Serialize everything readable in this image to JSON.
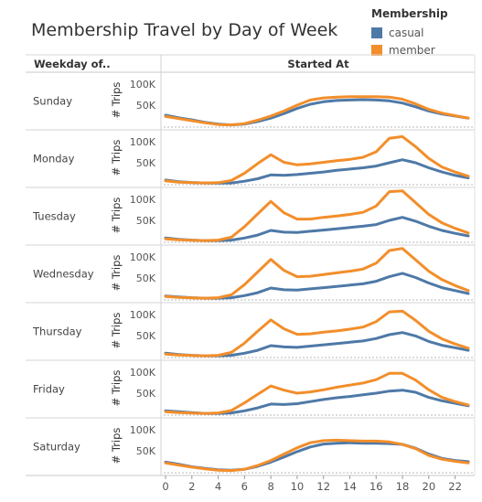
{
  "title": "Membership Travel by Day of Week",
  "legend": {
    "title": "Membership",
    "items": [
      {
        "label": "casual",
        "color": "#4e79a7"
      },
      {
        "label": "member",
        "color": "#f28e2b"
      }
    ]
  },
  "chart_data": {
    "type": "line",
    "title": "Membership Travel by Day of Week",
    "row_header": "Weekday of..",
    "column_header": "Started At",
    "ylabel": "# Trips",
    "x": [
      0,
      1,
      2,
      3,
      4,
      5,
      6,
      7,
      8,
      9,
      10,
      11,
      12,
      13,
      14,
      15,
      16,
      17,
      18,
      19,
      20,
      21,
      22,
      23
    ],
    "x_ticks": [
      0,
      2,
      4,
      6,
      8,
      10,
      12,
      14,
      16,
      18,
      20,
      22
    ],
    "ylim": [
      0,
      115000
    ],
    "y_ticks": [
      {
        "value": 50000,
        "label": "50K"
      },
      {
        "value": 100000,
        "label": "100K"
      }
    ],
    "panels": [
      {
        "day": "Sunday",
        "casual": [
          26000,
          20000,
          15000,
          9000,
          5000,
          3000,
          5000,
          11000,
          19000,
          30000,
          42000,
          52000,
          58000,
          61000,
          62000,
          63000,
          62000,
          60000,
          55000,
          46000,
          36000,
          29000,
          24000,
          19000
        ],
        "member": [
          23000,
          18000,
          13000,
          8000,
          4000,
          3000,
          6000,
          14000,
          24000,
          36000,
          50000,
          62000,
          67000,
          69000,
          70000,
          70000,
          70000,
          69000,
          64000,
          53000,
          40000,
          31000,
          25000,
          19000
        ]
      },
      {
        "day": "Monday",
        "casual": [
          9000,
          5000,
          3000,
          2000,
          1500,
          2000,
          6000,
          12000,
          21000,
          20000,
          22000,
          25000,
          28000,
          32000,
          35000,
          38000,
          42000,
          50000,
          57000,
          50000,
          38000,
          28000,
          20000,
          14000
        ],
        "member": [
          7000,
          4000,
          2500,
          2000,
          2500,
          8000,
          25000,
          48000,
          69000,
          51000,
          45000,
          47000,
          51000,
          55000,
          58000,
          63000,
          76000,
          108000,
          112000,
          88000,
          60000,
          40000,
          28000,
          18000
        ]
      },
      {
        "day": "Tuesday",
        "casual": [
          8000,
          5000,
          3000,
          2000,
          2000,
          3000,
          8000,
          15000,
          26000,
          22000,
          21000,
          24000,
          27000,
          30000,
          33000,
          36000,
          40000,
          50000,
          57000,
          48000,
          36000,
          26000,
          19000,
          13000
        ],
        "member": [
          6000,
          4000,
          2500,
          2000,
          3000,
          10000,
          35000,
          65000,
          95000,
          68000,
          53000,
          53000,
          57000,
          60000,
          64000,
          69000,
          84000,
          118000,
          120000,
          92000,
          64000,
          44000,
          31000,
          20000
        ]
      },
      {
        "day": "Wednesday",
        "casual": [
          7000,
          5000,
          3000,
          2000,
          2000,
          3000,
          8000,
          15000,
          26000,
          22000,
          21000,
          24000,
          27000,
          30000,
          33000,
          36000,
          42000,
          53000,
          61000,
          51000,
          38000,
          27000,
          20000,
          13000
        ],
        "member": [
          6000,
          4000,
          2500,
          2000,
          3000,
          10000,
          34000,
          64000,
          94000,
          68000,
          53000,
          54000,
          58000,
          62000,
          66000,
          71000,
          85000,
          115000,
          120000,
          93000,
          66000,
          46000,
          32000,
          20000
        ]
      },
      {
        "day": "Thursday",
        "casual": [
          8000,
          5000,
          3000,
          2000,
          2000,
          3000,
          8000,
          15000,
          26000,
          23000,
          22000,
          25000,
          28000,
          31000,
          34000,
          37000,
          43000,
          52000,
          57000,
          49000,
          36000,
          27000,
          21000,
          15000
        ],
        "member": [
          6000,
          4000,
          2500,
          2000,
          3000,
          10000,
          32000,
          60000,
          87000,
          66000,
          53000,
          54000,
          58000,
          61000,
          65000,
          70000,
          83000,
          106000,
          108000,
          86000,
          60000,
          42000,
          30000,
          20000
        ]
      },
      {
        "day": "Friday",
        "casual": [
          8000,
          6000,
          4000,
          2000,
          2000,
          3000,
          8000,
          15000,
          24000,
          23000,
          25000,
          30000,
          35000,
          39000,
          42000,
          46000,
          50000,
          55000,
          57000,
          52000,
          40000,
          32000,
          26000,
          20000
        ],
        "member": [
          6000,
          4000,
          2500,
          2000,
          3000,
          9000,
          27000,
          47000,
          67000,
          57000,
          50000,
          53000,
          58000,
          64000,
          69000,
          74000,
          82000,
          97000,
          97000,
          81000,
          58000,
          40000,
          30000,
          22000
        ]
      },
      {
        "day": "Saturday",
        "casual": [
          23000,
          18000,
          12000,
          8000,
          5000,
          4000,
          6000,
          13000,
          23000,
          35000,
          48000,
          59000,
          66000,
          68000,
          69000,
          68000,
          68000,
          67000,
          65000,
          56000,
          42000,
          32000,
          27000,
          24000
        ],
        "member": [
          21000,
          16000,
          11000,
          7000,
          4000,
          3000,
          6000,
          15000,
          27000,
          42000,
          57000,
          69000,
          74000,
          75000,
          74000,
          73000,
          73000,
          71000,
          65000,
          55000,
          39000,
          30000,
          25000,
          21000
        ]
      }
    ]
  }
}
